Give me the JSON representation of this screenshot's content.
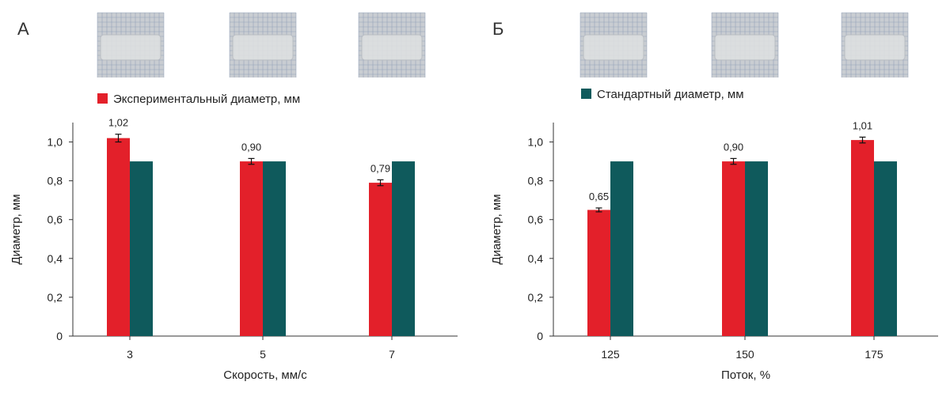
{
  "panels": [
    {
      "letter": "А",
      "legend_label": "Экспериментальный диаметр, мм"
    },
    {
      "letter": "Б",
      "legend_label": "Стандартный диаметр, мм"
    }
  ],
  "colors": {
    "experimental": "#e3202a",
    "standard": "#0f5a5c",
    "axis": "#333333",
    "thumb_bg": "#c9cdd2",
    "thumb_grid": "#8b9bb5",
    "thumb_sample": "#dfe1e2"
  },
  "chart_data": [
    {
      "type": "bar",
      "xlabel": "Скорость, мм/с",
      "ylabel": "Диаметр, мм",
      "ylim": [
        0,
        1.1
      ],
      "yticks": [
        0,
        0.2,
        0.4,
        0.6,
        0.8,
        1.0
      ],
      "ytick_labels": [
        "0",
        "0,2",
        "0,4",
        "0,6",
        "0,8",
        "1,0"
      ],
      "categories": [
        "3",
        "5",
        "7"
      ],
      "series": [
        {
          "name": "Экспериментальный диаметр, мм",
          "values": [
            1.02,
            0.9,
            0.79
          ],
          "errors": [
            0.02,
            0.015,
            0.015
          ],
          "labels": [
            "1,02",
            "0,90",
            "0,79"
          ]
        },
        {
          "name": "Стандартный диаметр, мм",
          "values": [
            0.9,
            0.9,
            0.9
          ]
        }
      ]
    },
    {
      "type": "bar",
      "xlabel": "Поток, %",
      "ylabel": "Диаметр, мм",
      "ylim": [
        0,
        1.1
      ],
      "yticks": [
        0,
        0.2,
        0.4,
        0.6,
        0.8,
        1.0
      ],
      "ytick_labels": [
        "0",
        "0,2",
        "0,4",
        "0,6",
        "0,8",
        "1,0"
      ],
      "categories": [
        "125",
        "150",
        "175"
      ],
      "series": [
        {
          "name": "Экспериментальный диаметр, мм",
          "values": [
            0.65,
            0.9,
            1.01
          ],
          "errors": [
            0.01,
            0.015,
            0.015
          ],
          "labels": [
            "0,65",
            "0,90",
            "1,01"
          ]
        },
        {
          "name": "Стандартный диаметр, мм",
          "values": [
            0.9,
            0.9,
            0.9
          ]
        }
      ]
    }
  ]
}
